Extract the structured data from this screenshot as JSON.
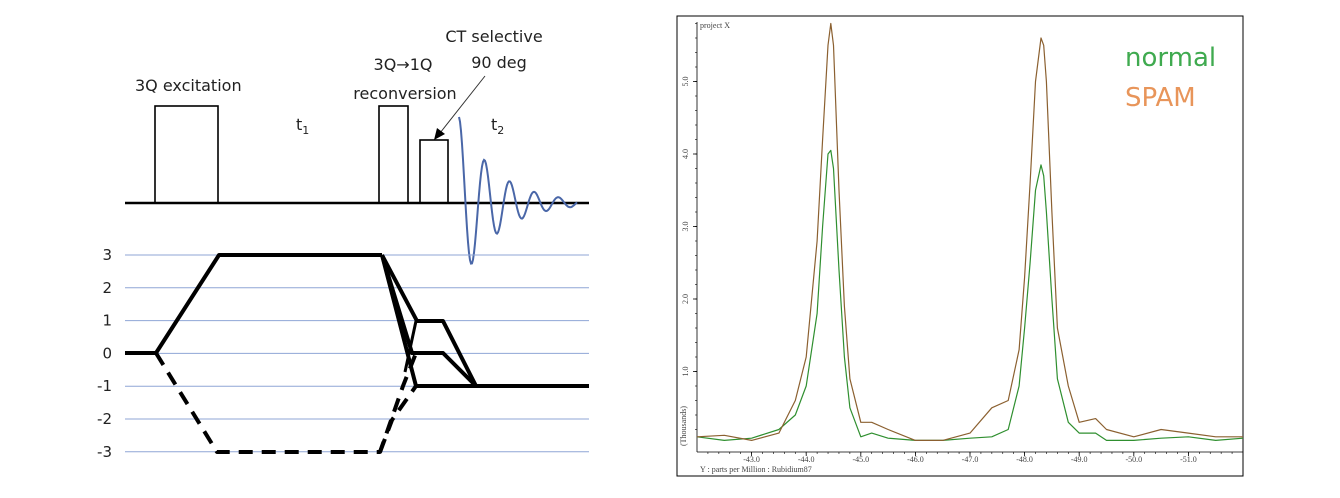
{
  "diagram": {
    "labels": {
      "excitation": "3Q excitation",
      "t1": "t",
      "t1_sub": "1",
      "reconversion_line1": "3Q→1Q",
      "reconversion_line2": "reconversion",
      "ct_line1": "CT selective",
      "ct_line2": "90 deg",
      "t2": "t",
      "t2_sub": "2"
    },
    "coherence_levels": [
      "3",
      "2",
      "1",
      "0",
      "-1",
      "-2",
      "-3"
    ],
    "colors": {
      "fid": "#4a67a8",
      "gridlines": "#8fa6d6",
      "pathway": "#000000"
    }
  },
  "chart_data": {
    "type": "line",
    "title": "project X",
    "xlabel": "Y : parts per Million : Rubidium87",
    "ylabel": "(Thousands)",
    "xlim": [
      -42.0,
      -52.0
    ],
    "ylim": [
      0,
      6
    ],
    "x_reversed": true,
    "xticks": [
      "-43.0",
      "-44.0",
      "-45.0",
      "-46.0",
      "-47.0",
      "-48.0",
      "-49.0",
      "-50.0",
      "-51.0"
    ],
    "yticks": [
      "1.0",
      "2.0",
      "3.0",
      "4.0",
      "5.0"
    ],
    "grid": false,
    "legend_placement": "top-right",
    "x": [
      -42.0,
      -42.5,
      -43.0,
      -43.5,
      -43.8,
      -44.0,
      -44.2,
      -44.3,
      -44.4,
      -44.45,
      -44.5,
      -44.6,
      -44.7,
      -44.8,
      -45.0,
      -45.2,
      -45.5,
      -46.0,
      -46.5,
      -47.0,
      -47.4,
      -47.7,
      -47.9,
      -48.0,
      -48.1,
      -48.2,
      -48.3,
      -48.35,
      -48.4,
      -48.5,
      -48.6,
      -48.8,
      -49.0,
      -49.3,
      -49.5,
      -50.0,
      -50.5,
      -51.0,
      -51.5,
      -52.0
    ],
    "series": [
      {
        "name": "normal",
        "legend_color": "#3faa4f",
        "line_color": "#2f8f2f",
        "values": [
          0.1,
          0.05,
          0.08,
          0.2,
          0.4,
          0.8,
          1.8,
          3.0,
          4.0,
          4.05,
          3.8,
          2.4,
          1.2,
          0.5,
          0.1,
          0.15,
          0.08,
          0.05,
          0.05,
          0.08,
          0.1,
          0.2,
          0.8,
          1.6,
          2.5,
          3.5,
          3.85,
          3.7,
          3.2,
          2.0,
          0.9,
          0.3,
          0.15,
          0.15,
          0.05,
          0.05,
          0.08,
          0.1,
          0.05,
          0.08
        ]
      },
      {
        "name": "SPAM",
        "legend_color": "#e8955a",
        "line_color": "#8b6030",
        "values": [
          0.1,
          0.12,
          0.05,
          0.15,
          0.6,
          1.2,
          2.8,
          4.2,
          5.5,
          5.8,
          5.5,
          3.5,
          1.9,
          0.9,
          0.3,
          0.3,
          0.2,
          0.05,
          0.05,
          0.15,
          0.5,
          0.6,
          1.3,
          2.3,
          3.6,
          5.0,
          5.6,
          5.5,
          5.0,
          3.2,
          1.6,
          0.8,
          0.3,
          0.35,
          0.2,
          0.1,
          0.2,
          0.15,
          0.1,
          0.1
        ]
      }
    ]
  }
}
